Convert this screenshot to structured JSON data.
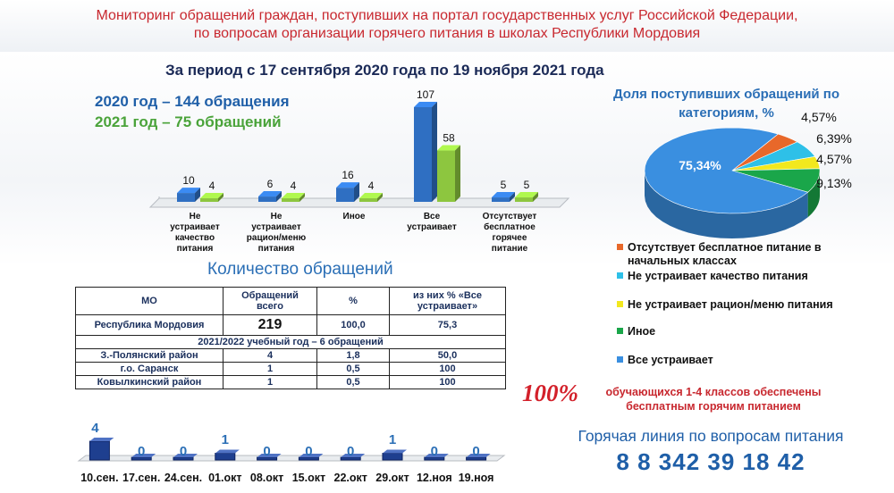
{
  "header": {
    "line1": "Мониторинг обращений граждан, поступивших на портал государственных услуг Российской Федерации,",
    "line2": "по вопросам организации горячего питания в школах Республики Мордовия"
  },
  "period": "За период с 17 сентября 2020 года по 19 ноября 2021 года",
  "year2020": "2020 год – 144 обращения",
  "year2021": "2021 год – 75 обращений",
  "colors": {
    "blue": "#2f6fc2",
    "green": "#8dc63f",
    "orange": "#e8682a",
    "cyan": "#2ec0e8",
    "yellow": "#f2e81e",
    "darkgreen": "#1aa64a",
    "pieblue": "#3a8fe0"
  },
  "chart_data": [
    {
      "type": "bar",
      "title": "",
      "categories": [
        "Не устраивает качество питания",
        "Не устраивает рацион/меню питания",
        "Иное",
        "Все устраивает",
        "Отсутствует бесплатное горячее питание"
      ],
      "category_labels": [
        [
          "Не",
          "устраивает",
          "качество",
          "питания"
        ],
        [
          "Не",
          "устраивает",
          "рацион/меню",
          "питания"
        ],
        [
          "Иное"
        ],
        [
          "Все",
          "устраивает"
        ],
        [
          "Отсутствует",
          "бесплатное",
          "горячее",
          "питание"
        ]
      ],
      "series": [
        {
          "name": "2020",
          "values": [
            10,
            6,
            16,
            107,
            5
          ]
        },
        {
          "name": "2021",
          "values": [
            4,
            4,
            4,
            58,
            5
          ]
        }
      ]
    },
    {
      "type": "pie",
      "title": "Доля поступивших обращений по категориям, %",
      "labels": [
        "Отсутствует бесплатное питание в начальных классах",
        "Не устраивает качество питания",
        "Не устраивает рацион/меню питания",
        "Иное",
        "Все устраивает"
      ],
      "values": [
        4.57,
        6.39,
        4.57,
        9.13,
        75.34
      ],
      "value_labels": [
        "4,57%",
        "6,39%",
        "4,57%",
        "9,13%",
        "75,34%"
      ]
    },
    {
      "type": "bar",
      "title": "",
      "categories": [
        "10.сен.",
        "17.сен.",
        "24.сен.",
        "01.окт",
        "08.окт",
        "15.окт",
        "22.окт",
        "29.окт",
        "12.ноя",
        "19.ноя"
      ],
      "values": [
        4,
        0,
        0,
        1,
        0,
        0,
        0,
        1,
        0,
        0
      ]
    }
  ],
  "legend": [
    "Отсутствует  бесплатное питание в начальных классах",
    "Не устраивает качество питания",
    "Не устраивает рацион/меню питания",
    "Иное",
    "Все устраивает"
  ],
  "quantity_title": "Количество обращений",
  "table": {
    "head": [
      "МО",
      "Обращений всего",
      "%",
      "из них % «Все устраивает»"
    ],
    "total": [
      "Республика Мордовия",
      "219",
      "100,0",
      "75,3"
    ],
    "section": "2021/2022 учебный год – 6 обращений",
    "rows": [
      [
        "З.-Полянский район",
        "4",
        "1,8",
        "50,0"
      ],
      [
        "г.о. Саранск",
        "1",
        "0,5",
        "100"
      ],
      [
        "Ковылкинский район",
        "1",
        "0,5",
        "100"
      ]
    ]
  },
  "pct100": "100%",
  "pupils": "обучающихся 1-4  классов обеспечены бесплатным горячим питанием",
  "hotline": "Горячая линия по вопросам питания",
  "phone": "8 8 342 39 18 42"
}
